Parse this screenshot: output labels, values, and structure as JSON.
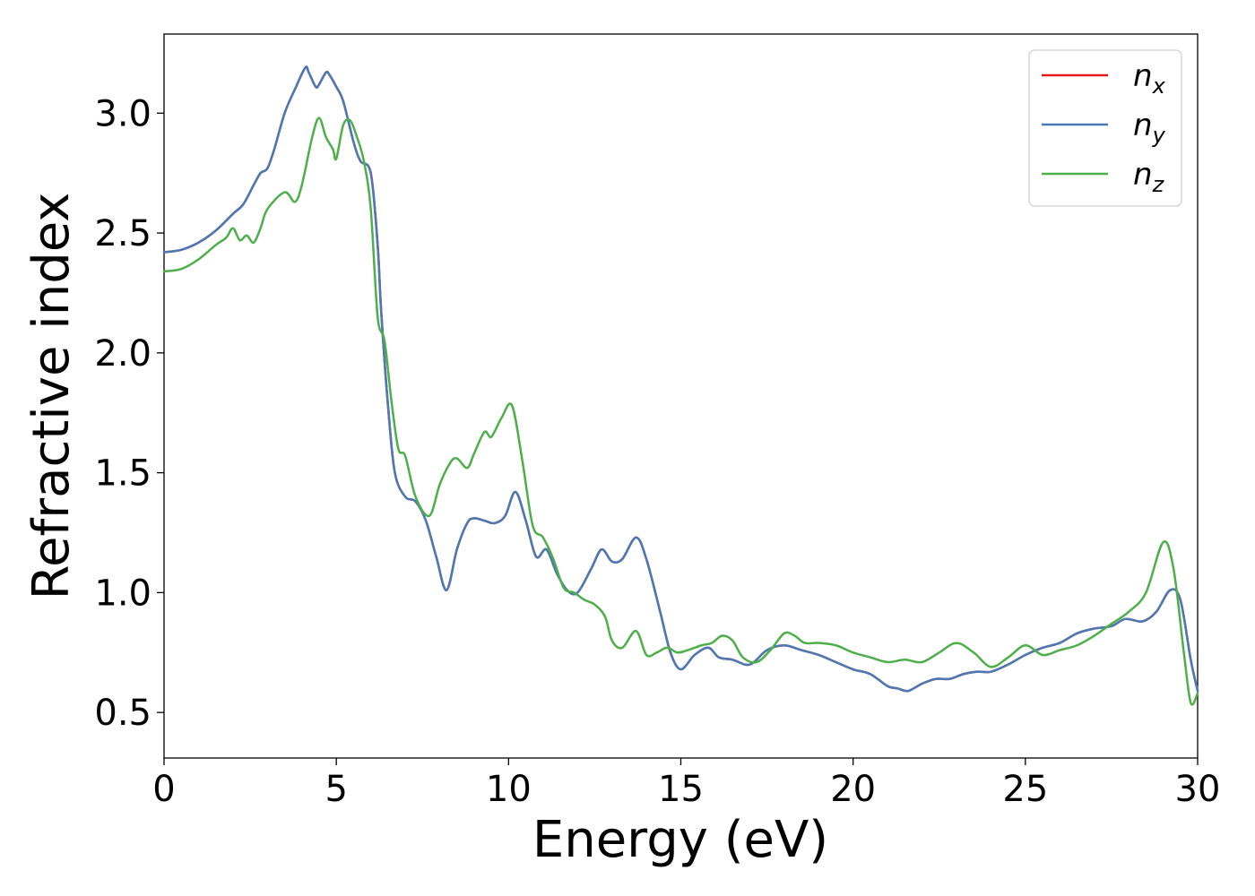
{
  "chart_data": {
    "type": "line",
    "xlabel": "Energy (eV)",
    "ylabel": "Refractive index",
    "xlim": [
      0,
      30
    ],
    "ylim": [
      0.31,
      3.33
    ],
    "xticks": [
      0,
      5,
      10,
      15,
      20,
      25,
      30
    ],
    "yticks": [
      0.5,
      1.0,
      1.5,
      2.0,
      2.5,
      3.0
    ],
    "xtick_labels": [
      "0",
      "5",
      "10",
      "15",
      "20",
      "25",
      "30"
    ],
    "ytick_labels": [
      "0.5",
      "1.0",
      "1.5",
      "2.0",
      "2.5",
      "3.0"
    ],
    "grid": false,
    "legend_position": "top-right",
    "series": [
      {
        "name": "n",
        "subscript": "x",
        "color": "#e41a1c",
        "x": [
          0,
          0.5,
          1.0,
          1.5,
          2.0,
          2.3,
          2.6,
          2.8,
          3.0,
          3.2,
          3.5,
          3.8,
          4.1,
          4.2,
          4.4,
          4.5,
          4.7,
          4.8,
          5.0,
          5.2,
          5.5,
          5.7,
          6.0,
          6.2,
          6.3,
          6.5,
          6.7,
          7.0,
          7.3,
          7.6,
          7.9,
          8.2,
          8.5,
          8.8,
          9.0,
          9.3,
          9.6,
          9.9,
          10.2,
          10.5,
          10.8,
          11.1,
          11.4,
          11.7,
          12.0,
          12.4,
          12.7,
          13.0,
          13.3,
          13.7,
          14.0,
          14.4,
          14.7,
          15.0,
          15.4,
          15.8,
          16.1,
          16.5,
          17.0,
          17.5,
          18.0,
          18.5,
          19.0,
          19.5,
          20.0,
          20.5,
          21.0,
          21.3,
          21.6,
          22.0,
          22.4,
          22.8,
          23.2,
          23.6,
          24.0,
          24.5,
          25.0,
          25.5,
          26.0,
          26.5,
          27.0,
          27.5,
          27.9,
          28.4,
          28.8,
          29.2,
          29.5,
          29.8,
          30.0
        ],
        "y": [
          2.42,
          2.43,
          2.46,
          2.51,
          2.58,
          2.62,
          2.7,
          2.75,
          2.77,
          2.85,
          3.0,
          3.1,
          3.19,
          3.17,
          3.11,
          3.12,
          3.17,
          3.16,
          3.11,
          3.05,
          2.88,
          2.8,
          2.75,
          2.45,
          2.18,
          1.78,
          1.5,
          1.4,
          1.38,
          1.3,
          1.15,
          1.01,
          1.18,
          1.29,
          1.31,
          1.3,
          1.29,
          1.32,
          1.42,
          1.3,
          1.15,
          1.18,
          1.08,
          1.01,
          1.0,
          1.1,
          1.18,
          1.13,
          1.14,
          1.23,
          1.14,
          0.92,
          0.75,
          0.68,
          0.74,
          0.77,
          0.73,
          0.72,
          0.7,
          0.76,
          0.78,
          0.76,
          0.74,
          0.71,
          0.68,
          0.66,
          0.61,
          0.6,
          0.59,
          0.62,
          0.64,
          0.64,
          0.66,
          0.67,
          0.67,
          0.7,
          0.74,
          0.77,
          0.79,
          0.83,
          0.85,
          0.86,
          0.89,
          0.88,
          0.92,
          1.01,
          0.97,
          0.72,
          0.59
        ]
      },
      {
        "name": "n",
        "subscript": "y",
        "color": "#4a7ab5",
        "x": [
          0,
          0.5,
          1.0,
          1.5,
          2.0,
          2.3,
          2.6,
          2.8,
          3.0,
          3.2,
          3.5,
          3.8,
          4.1,
          4.2,
          4.4,
          4.5,
          4.7,
          4.8,
          5.0,
          5.2,
          5.5,
          5.7,
          6.0,
          6.2,
          6.3,
          6.5,
          6.7,
          7.0,
          7.3,
          7.6,
          7.9,
          8.2,
          8.5,
          8.8,
          9.0,
          9.3,
          9.6,
          9.9,
          10.2,
          10.5,
          10.8,
          11.1,
          11.4,
          11.7,
          12.0,
          12.4,
          12.7,
          13.0,
          13.3,
          13.7,
          14.0,
          14.4,
          14.7,
          15.0,
          15.4,
          15.8,
          16.1,
          16.5,
          17.0,
          17.5,
          18.0,
          18.5,
          19.0,
          19.5,
          20.0,
          20.5,
          21.0,
          21.3,
          21.6,
          22.0,
          22.4,
          22.8,
          23.2,
          23.6,
          24.0,
          24.5,
          25.0,
          25.5,
          26.0,
          26.5,
          27.0,
          27.5,
          27.9,
          28.4,
          28.8,
          29.2,
          29.5,
          29.8,
          30.0
        ],
        "y": [
          2.42,
          2.43,
          2.46,
          2.51,
          2.58,
          2.62,
          2.7,
          2.75,
          2.77,
          2.85,
          3.0,
          3.1,
          3.19,
          3.17,
          3.11,
          3.12,
          3.17,
          3.16,
          3.11,
          3.05,
          2.88,
          2.8,
          2.75,
          2.45,
          2.18,
          1.78,
          1.5,
          1.4,
          1.38,
          1.3,
          1.15,
          1.01,
          1.18,
          1.29,
          1.31,
          1.3,
          1.29,
          1.32,
          1.42,
          1.3,
          1.15,
          1.18,
          1.08,
          1.01,
          1.0,
          1.1,
          1.18,
          1.13,
          1.14,
          1.23,
          1.14,
          0.92,
          0.75,
          0.68,
          0.74,
          0.77,
          0.73,
          0.72,
          0.7,
          0.76,
          0.78,
          0.76,
          0.74,
          0.71,
          0.68,
          0.66,
          0.61,
          0.6,
          0.59,
          0.62,
          0.64,
          0.64,
          0.66,
          0.67,
          0.67,
          0.7,
          0.74,
          0.77,
          0.79,
          0.83,
          0.85,
          0.86,
          0.89,
          0.88,
          0.92,
          1.01,
          0.97,
          0.72,
          0.59
        ]
      },
      {
        "name": "n",
        "subscript": "z",
        "color": "#4daf4a",
        "x": [
          0,
          0.5,
          1.0,
          1.5,
          1.8,
          2.0,
          2.2,
          2.4,
          2.6,
          2.8,
          3.0,
          3.5,
          3.8,
          4.0,
          4.3,
          4.5,
          4.7,
          4.9,
          5.0,
          5.2,
          5.4,
          5.6,
          5.8,
          6.0,
          6.2,
          6.4,
          6.6,
          6.8,
          7.0,
          7.3,
          7.7,
          8.0,
          8.3,
          8.5,
          8.8,
          9.0,
          9.3,
          9.5,
          9.8,
          10.1,
          10.4,
          10.7,
          11.0,
          11.3,
          11.6,
          11.9,
          12.2,
          12.5,
          12.8,
          13.0,
          13.3,
          13.7,
          14.0,
          14.3,
          14.6,
          14.9,
          15.2,
          15.6,
          15.9,
          16.2,
          16.5,
          16.8,
          17.2,
          17.6,
          18.0,
          18.3,
          18.6,
          19.0,
          19.5,
          20.0,
          20.5,
          21.0,
          21.5,
          22.0,
          22.5,
          23.0,
          23.5,
          24.0,
          24.5,
          25.0,
          25.5,
          26.0,
          26.5,
          27.0,
          27.5,
          28.0,
          28.5,
          29.0,
          29.3,
          29.6,
          29.8,
          30.0
        ],
        "y": [
          2.34,
          2.35,
          2.39,
          2.45,
          2.48,
          2.52,
          2.47,
          2.49,
          2.46,
          2.52,
          2.6,
          2.67,
          2.63,
          2.7,
          2.9,
          2.98,
          2.9,
          2.85,
          2.81,
          2.95,
          2.97,
          2.9,
          2.8,
          2.6,
          2.15,
          2.05,
          1.8,
          1.6,
          1.57,
          1.4,
          1.32,
          1.45,
          1.54,
          1.56,
          1.52,
          1.58,
          1.67,
          1.65,
          1.73,
          1.78,
          1.55,
          1.28,
          1.23,
          1.14,
          1.02,
          1.0,
          0.97,
          0.95,
          0.9,
          0.8,
          0.77,
          0.84,
          0.74,
          0.75,
          0.77,
          0.75,
          0.76,
          0.78,
          0.79,
          0.82,
          0.8,
          0.73,
          0.71,
          0.76,
          0.83,
          0.82,
          0.79,
          0.79,
          0.78,
          0.75,
          0.73,
          0.71,
          0.72,
          0.71,
          0.75,
          0.79,
          0.75,
          0.69,
          0.73,
          0.78,
          0.74,
          0.76,
          0.78,
          0.82,
          0.87,
          0.92,
          1.0,
          1.21,
          1.1,
          0.75,
          0.54,
          0.58
        ]
      }
    ]
  }
}
